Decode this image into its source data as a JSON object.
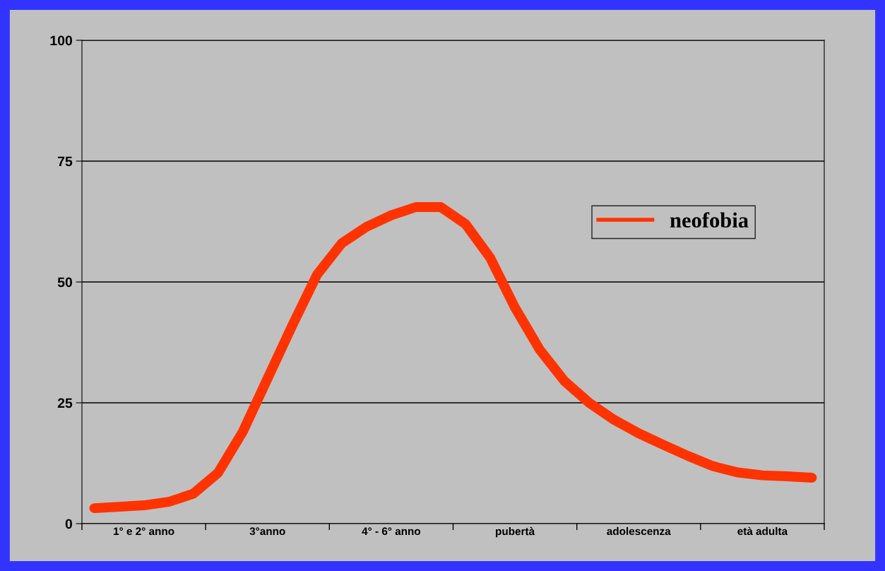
{
  "chart_data": {
    "type": "line",
    "categories": [
      null,
      null,
      "1° e 2° anno",
      null,
      null,
      null,
      null,
      "3°anno",
      null,
      null,
      null,
      null,
      "4° - 6° anno",
      null,
      null,
      null,
      null,
      "pubertà",
      null,
      null,
      null,
      null,
      "adolescenza",
      null,
      null,
      null,
      null,
      "età adulta",
      null,
      null
    ],
    "series": [
      {
        "name": "neofobia",
        "color": "#ff3300",
        "values": [
          3.2,
          3.5,
          3.8,
          4.5,
          6.2,
          10.5,
          19,
          30,
          41,
          51.5,
          58,
          61.4,
          63.8,
          65.5,
          65.5,
          62,
          55,
          44.7,
          36,
          29.5,
          25,
          21.5,
          18.7,
          16.3,
          14,
          11.9,
          10.6,
          10,
          9.8,
          9.5
        ]
      }
    ],
    "ylim": [
      0,
      100
    ],
    "yticks": [
      0,
      25,
      50,
      75,
      100
    ],
    "grid": "y",
    "legend": "top right",
    "line_style": "solid"
  }
}
